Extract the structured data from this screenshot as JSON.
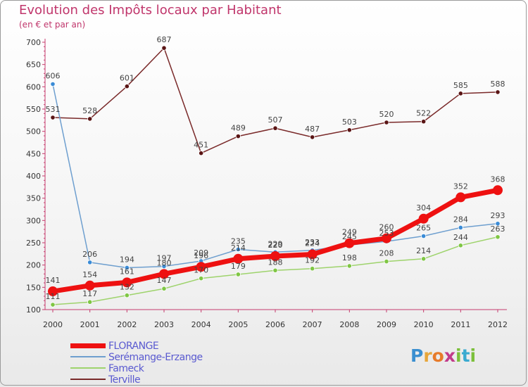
{
  "chart_data": {
    "type": "line",
    "title": "Evolution des Impôts locaux par Habitant",
    "subtitle": "(en € et par an)",
    "xlabel": "",
    "ylabel": "",
    "ylim": [
      100,
      700
    ],
    "yticks": [
      100,
      150,
      200,
      250,
      300,
      350,
      400,
      450,
      500,
      550,
      600,
      650,
      700
    ],
    "categories": [
      "2000",
      "2001",
      "2002",
      "2003",
      "2004",
      "2005",
      "2006",
      "2007",
      "2008",
      "2009",
      "2010",
      "2011",
      "2012"
    ],
    "series": [
      {
        "name": "FLORANGE",
        "color": "#ee1111",
        "values": [
          141,
          154,
          161,
          180,
          196,
          214,
          220,
          224,
          249,
          260,
          304,
          352,
          368
        ]
      },
      {
        "name": "Serémange-Erzange",
        "color": "#6e9fcf",
        "values": [
          606,
          206,
          194,
          197,
          209,
          235,
          229,
          233,
          245,
          253,
          265,
          284,
          293
        ]
      },
      {
        "name": "Fameck",
        "color": "#9ed36c",
        "values": [
          111,
          117,
          132,
          147,
          170,
          179,
          188,
          192,
          198,
          208,
          214,
          244,
          263
        ]
      },
      {
        "name": "Terville",
        "color": "#7a2a2a",
        "values": [
          531,
          528,
          601,
          687,
          451,
          489,
          507,
          487,
          503,
          520,
          522,
          585,
          588
        ]
      }
    ],
    "grid": false,
    "legend_position": "bottom-left"
  },
  "brand": {
    "letters": [
      "P",
      "r",
      "o",
      "x",
      "i",
      "t",
      "i"
    ],
    "colors": [
      "#3a8fd0",
      "#e7a63a",
      "#e77b2a",
      "#c23a8a",
      "#7bbf3a",
      "#3aaad0",
      "#7bbf3a"
    ]
  }
}
